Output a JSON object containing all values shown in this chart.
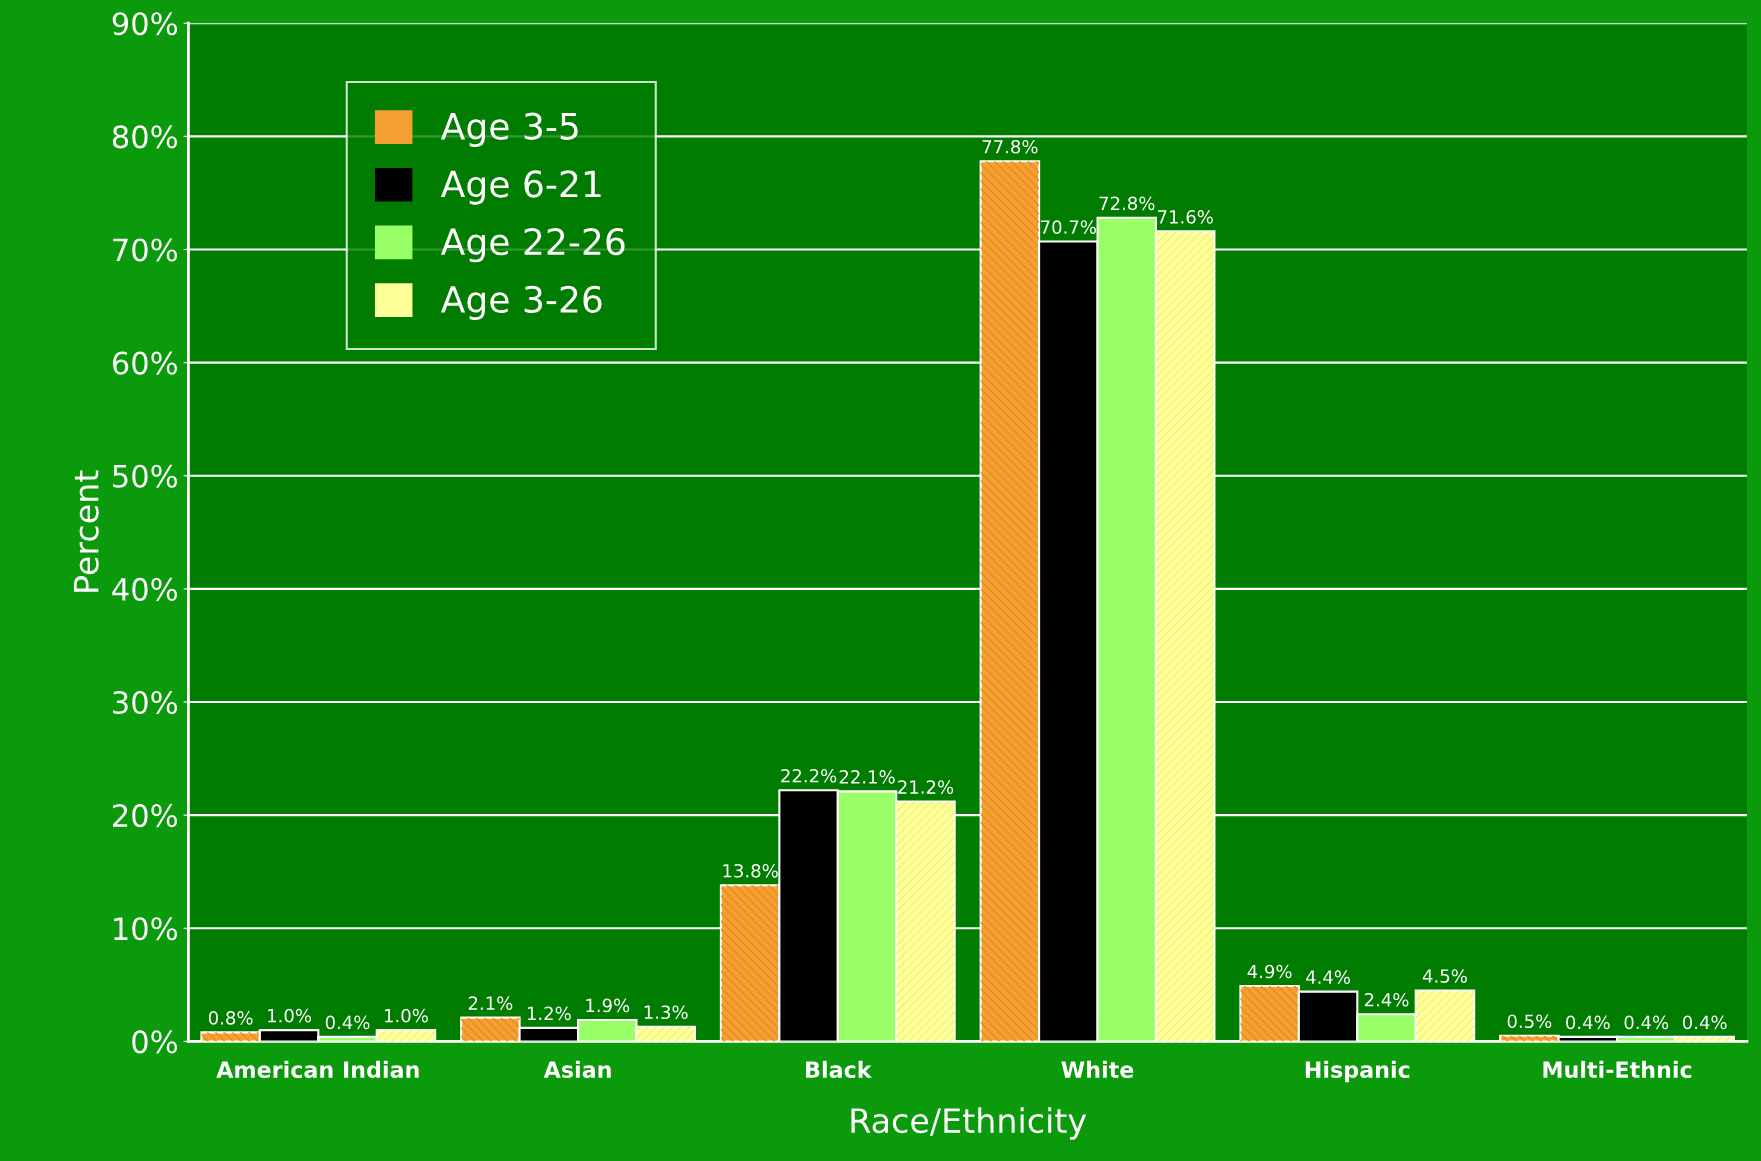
{
  "chart_data": {
    "type": "bar",
    "xlabel": "Race/Ethnicity",
    "ylabel": "Percent",
    "categories": [
      "American Indian",
      "Asian",
      "Black",
      "White",
      "Hispanic",
      "Multi-Ethnic"
    ],
    "series": [
      {
        "name": "Age 3-5",
        "color": "#f5a033",
        "values": [
          0.8,
          2.1,
          13.8,
          77.8,
          4.9,
          0.5
        ],
        "value_labels": [
          "0.8%",
          "2.1%",
          "13.8%",
          "77.8%",
          "4.9%",
          "0.5%"
        ]
      },
      {
        "name": "Age 6-21",
        "color": "#000000",
        "values": [
          1.0,
          1.2,
          22.2,
          70.7,
          4.4,
          0.4
        ],
        "value_labels": [
          "1.0%",
          "1.2%",
          "22.2%",
          "70.7%",
          "4.4%",
          "0.4%"
        ]
      },
      {
        "name": "Age 22-26",
        "color": "#99ff66",
        "values": [
          0.4,
          1.9,
          22.1,
          72.8,
          2.4,
          0.4
        ],
        "value_labels": [
          "0.4%",
          "1.9%",
          "22.1%",
          "72.8%",
          "2.4%",
          "0.4%"
        ]
      },
      {
        "name": "Age 3-26",
        "color": "#ffff99",
        "values": [
          1.0,
          1.3,
          21.2,
          71.6,
          4.5,
          0.4
        ],
        "value_labels": [
          "1.0%",
          "1.3%",
          "21.2%",
          "71.6%",
          "4.5%",
          "0.4%"
        ]
      }
    ],
    "ylim": [
      0,
      90
    ],
    "yticks": [
      {
        "value": 0,
        "label": "0%"
      },
      {
        "value": 10,
        "label": "10%"
      },
      {
        "value": 20,
        "label": "20%"
      },
      {
        "value": 30,
        "label": "30%"
      },
      {
        "value": 40,
        "label": "40%"
      },
      {
        "value": 50,
        "label": "50%"
      },
      {
        "value": 60,
        "label": "60%"
      },
      {
        "value": 70,
        "label": "70%"
      },
      {
        "value": 80,
        "label": "80%"
      },
      {
        "value": 90,
        "label": "90%"
      }
    ],
    "grid": "y",
    "legend": "top left"
  }
}
